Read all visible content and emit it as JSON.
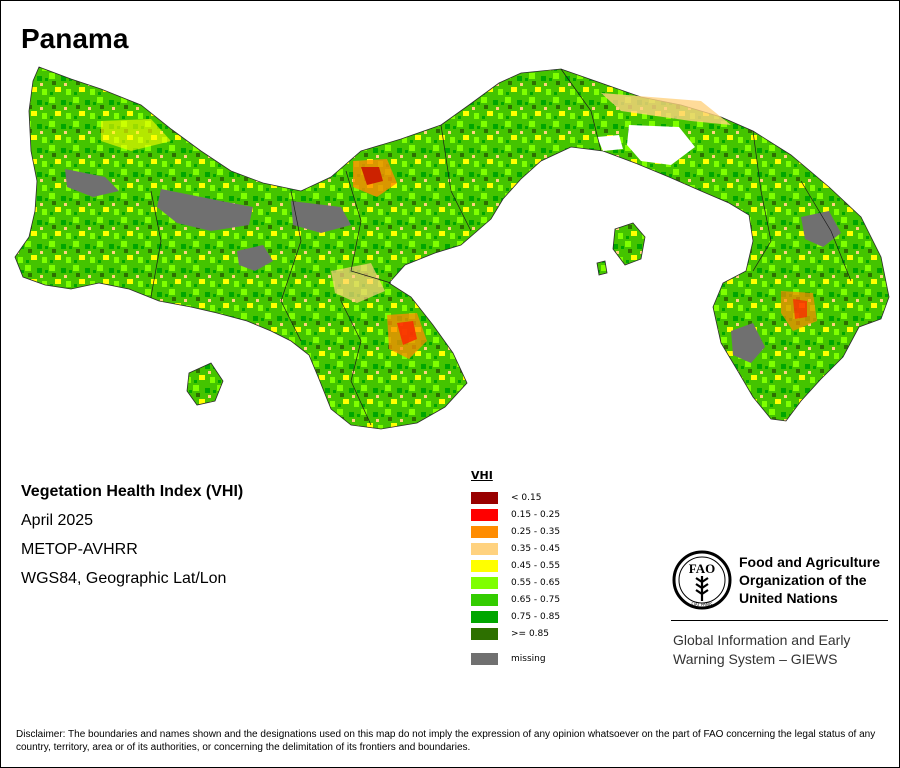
{
  "title": "Panama",
  "map_info": {
    "index_name": "Vegetation Health Index (VHI)",
    "period": "April 2025",
    "sensor": "METOP-AVHRR",
    "projection": "WGS84, Geographic Lat/Lon"
  },
  "legend": {
    "title": "VHI",
    "classes": [
      {
        "label": "< 0.15",
        "color": "#990000"
      },
      {
        "label": "0.15 - 0.25",
        "color": "#ff0000"
      },
      {
        "label": "0.25 - 0.35",
        "color": "#ff8c00"
      },
      {
        "label": "0.35 - 0.45",
        "color": "#ffd27f"
      },
      {
        "label": "0.45 - 0.55",
        "color": "#ffff00"
      },
      {
        "label": "0.55 - 0.65",
        "color": "#7fff00"
      },
      {
        "label": "0.65 - 0.75",
        "color": "#33cc00"
      },
      {
        "label": "0.75 - 0.85",
        "color": "#00a600"
      },
      {
        "label": ">= 0.85",
        "color": "#2d7000"
      }
    ],
    "missing": {
      "label": "missing",
      "color": "#707070"
    }
  },
  "logo": {
    "org_line1": "Food and Agriculture",
    "org_line2": "Organization of the",
    "org_line3": "United Nations",
    "emblem_text": "FAO",
    "emblem_motto": "FIAT PANIS",
    "program_line1": "Global Information and Early",
    "program_line2": "Warning System – GIEWS"
  },
  "disclaimer": "Disclaimer: The boundaries and names shown and the designations used on this map do not imply the expression of any opinion whatsoever on the part of FAO concerning the legal status of any country, territory, area or of its authorities, or concerning the delimitation of its frontiers and boundaries."
}
